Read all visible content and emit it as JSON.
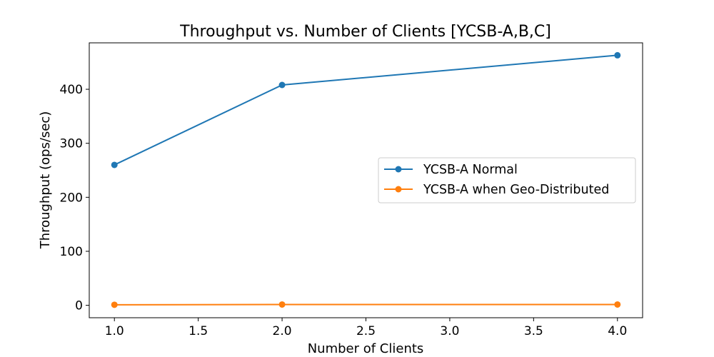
{
  "chart_data": {
    "type": "line",
    "title": "Throughput vs. Number of Clients [YCSB-A,B,C]",
    "xlabel": "Number of Clients",
    "ylabel": "Throughput (ops/sec)",
    "xlim": [
      0.85,
      4.15
    ],
    "ylim": [
      -23,
      486
    ],
    "xticks": [
      1.0,
      1.5,
      2.0,
      2.5,
      3.0,
      3.5,
      4.0
    ],
    "xtick_labels": [
      "1.0",
      "1.5",
      "2.0",
      "2.5",
      "3.0",
      "3.5",
      "4.0"
    ],
    "yticks": [
      0,
      100,
      200,
      300,
      400
    ],
    "ytick_labels": [
      "0",
      "100",
      "200",
      "300",
      "400"
    ],
    "grid": false,
    "legend_position": "center-right",
    "series": [
      {
        "name": "YCSB-A Normal",
        "color": "#1f77b4",
        "x": [
          1,
          2,
          4
        ],
        "y": [
          260,
          408,
          463
        ]
      },
      {
        "name": "YCSB-A when Geo-Distributed",
        "color": "#ff7f0e",
        "x": [
          1,
          2,
          4
        ],
        "y": [
          1,
          1.5,
          1.5
        ]
      }
    ]
  }
}
